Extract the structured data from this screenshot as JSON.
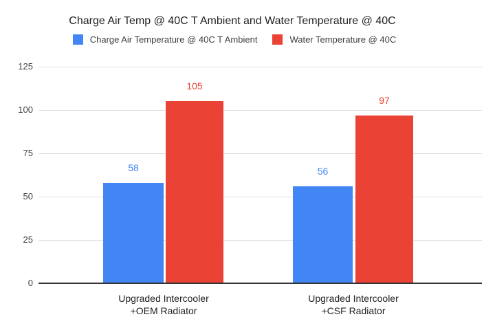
{
  "chart_data": {
    "type": "bar",
    "title": "Charge Air Temp @ 40C T Ambient and Water Temperature @ 40C",
    "categories": [
      "Upgraded Intercooler\n+OEM Radiator",
      "Upgraded Intercooler\n+CSF Radiator"
    ],
    "series": [
      {
        "name": "Charge Air Temperature @ 40C T Ambient",
        "color": "#4285f4",
        "values": [
          58,
          56
        ]
      },
      {
        "name": "Water Temperature @ 40C",
        "color": "#ea4335",
        "values": [
          105,
          97
        ]
      }
    ],
    "yticks": [
      0,
      25,
      50,
      75,
      100,
      125
    ],
    "ylim": [
      0,
      125
    ],
    "xlabel": "",
    "ylabel": "",
    "grid": true,
    "legend_position": "top",
    "value_labels": true,
    "colors": {
      "background": "#ffffff",
      "gridline": "#dcdcdc",
      "axis": "#333333"
    }
  }
}
